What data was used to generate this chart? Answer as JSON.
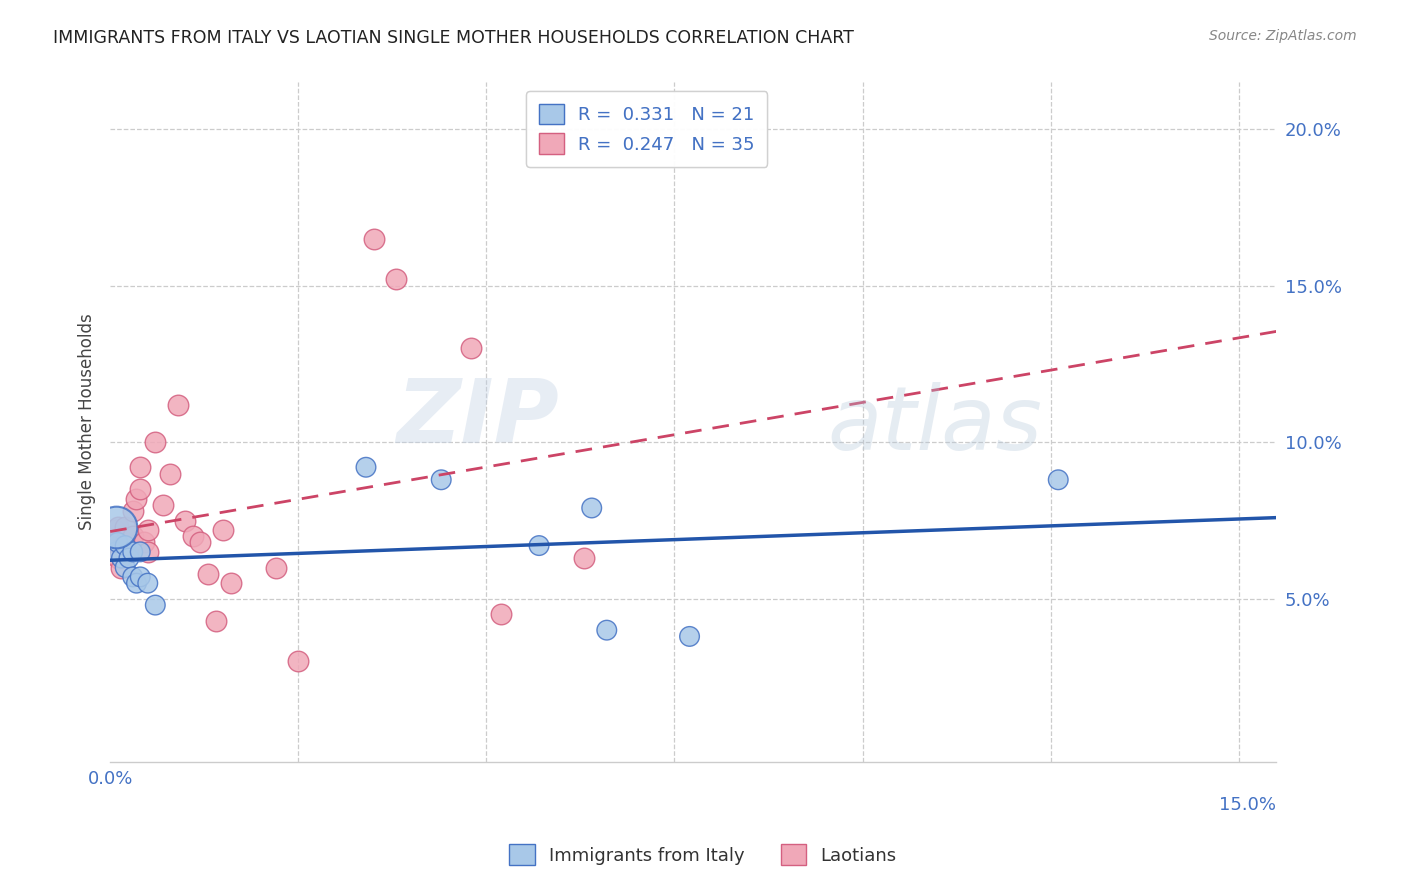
{
  "title": "IMMIGRANTS FROM ITALY VS LAOTIAN SINGLE MOTHER HOUSEHOLDS CORRELATION CHART",
  "source": "Source: ZipAtlas.com",
  "ylabel": "Single Mother Households",
  "xlim": [
    0.0,
    0.155
  ],
  "ylim": [
    -0.002,
    0.215
  ],
  "ytick_vals": [
    0.05,
    0.1,
    0.15,
    0.2
  ],
  "xtick_vals": [
    0.025,
    0.05,
    0.075,
    0.1,
    0.125,
    0.15
  ],
  "r_italy": "0.331",
  "n_italy": "21",
  "r_laotian": "0.247",
  "n_laotian": "35",
  "watermark_zip": "ZIP",
  "watermark_atlas": "atlas",
  "italy_color": "#a8c8e8",
  "laotian_color": "#f0a8b8",
  "italy_edge_color": "#4472c4",
  "laotian_edge_color": "#d46080",
  "italy_line_color": "#2255aa",
  "laotian_line_color": "#cc4466",
  "legend_label_italy": "Immigrants from Italy",
  "legend_label_laotian": "Laotians",
  "italy_x": [
    0.0008,
    0.0008,
    0.001,
    0.0015,
    0.002,
    0.002,
    0.0025,
    0.003,
    0.003,
    0.0035,
    0.004,
    0.004,
    0.005,
    0.006,
    0.034,
    0.044,
    0.057,
    0.064,
    0.066,
    0.077,
    0.126
  ],
  "italy_y": [
    0.073,
    0.065,
    0.068,
    0.063,
    0.067,
    0.06,
    0.063,
    0.065,
    0.057,
    0.055,
    0.065,
    0.057,
    0.055,
    0.048,
    0.092,
    0.088,
    0.067,
    0.079,
    0.04,
    0.038,
    0.088
  ],
  "italy_sizes": [
    900,
    200,
    200,
    200,
    200,
    200,
    200,
    200,
    200,
    200,
    200,
    200,
    200,
    200,
    200,
    200,
    200,
    200,
    200,
    200,
    200
  ],
  "laotian_x": [
    0.0006,
    0.0008,
    0.001,
    0.001,
    0.0015,
    0.002,
    0.002,
    0.002,
    0.0025,
    0.003,
    0.003,
    0.0035,
    0.004,
    0.004,
    0.0045,
    0.005,
    0.005,
    0.006,
    0.007,
    0.008,
    0.009,
    0.01,
    0.011,
    0.012,
    0.013,
    0.014,
    0.015,
    0.016,
    0.022,
    0.025,
    0.035,
    0.038,
    0.048,
    0.052,
    0.063
  ],
  "laotian_y": [
    0.072,
    0.068,
    0.073,
    0.063,
    0.06,
    0.068,
    0.065,
    0.073,
    0.065,
    0.078,
    0.07,
    0.082,
    0.085,
    0.092,
    0.068,
    0.072,
    0.065,
    0.1,
    0.08,
    0.09,
    0.112,
    0.075,
    0.07,
    0.068,
    0.058,
    0.043,
    0.072,
    0.055,
    0.06,
    0.03,
    0.165,
    0.152,
    0.13,
    0.045,
    0.063
  ],
  "background_color": "#ffffff",
  "grid_color": "#cccccc",
  "title_color": "#222222",
  "source_color": "#888888",
  "tick_color": "#4472c4"
}
